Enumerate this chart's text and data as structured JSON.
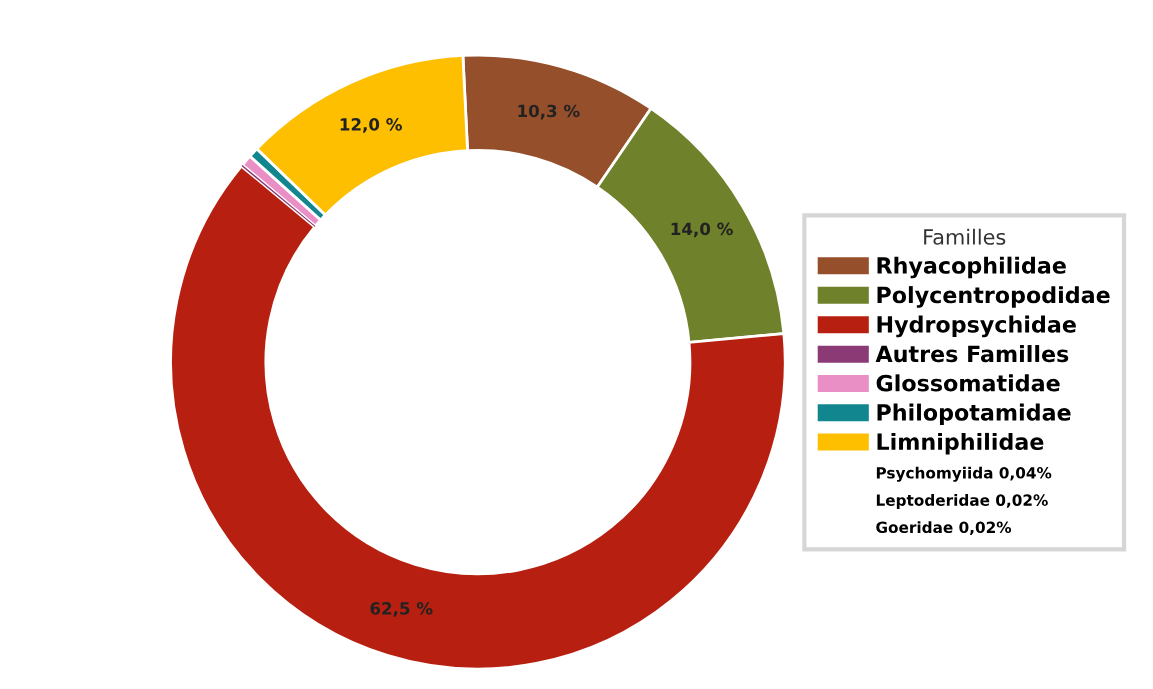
{
  "chart_data": {
    "type": "donut",
    "legend_title": "Familles",
    "legend": "right",
    "categories": [
      "Rhyacophilidae",
      "Polycentropodidae",
      "Hydropsychidae",
      "Autres Familles",
      "Glossomatidae",
      "Philopotamidae",
      "Limniphilidae"
    ],
    "values": [
      10.3,
      14.0,
      62.5,
      0.08,
      0.6,
      0.52,
      12.0
    ],
    "colors": [
      "#954f2a",
      "#6f812b",
      "#b72010",
      "#8c3a75",
      "#e98fc6",
      "#12868f",
      "#fdbf00"
    ],
    "value_labels": [
      "10,3 %",
      "14,0 %",
      "62,5 %",
      null,
      null,
      null,
      "12,0 %"
    ],
    "annotations": [
      "Psychomyiida 0,04%",
      "Leptoderidae 0,02%",
      "Goeridae 0,02%"
    ]
  }
}
